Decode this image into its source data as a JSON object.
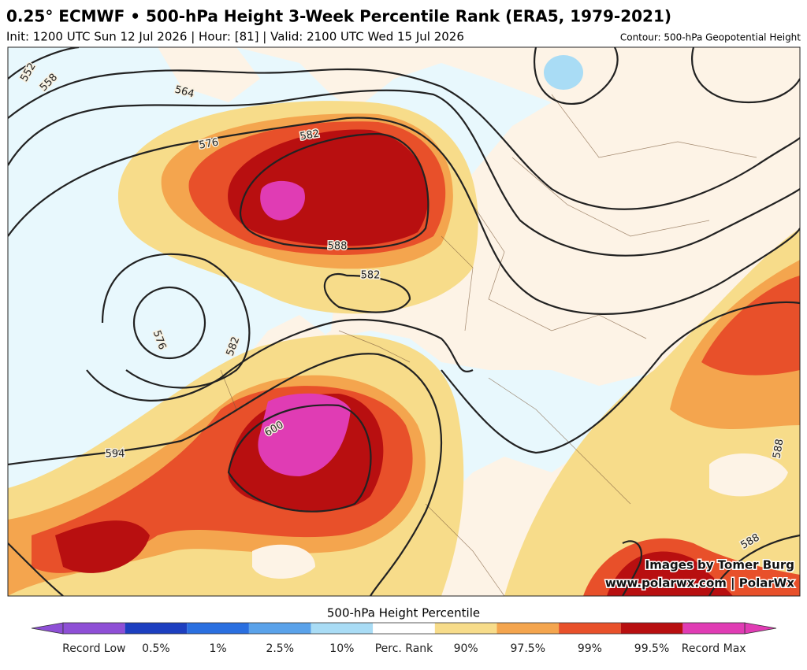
{
  "header": {
    "title": "0.25° ECMWF • 500-hPa Height 3-Week Percentile Rank (ERA5, 1979-2021)",
    "subtitle": "Init: 1200 UTC Sun 12 Jul 2026 | Hour: [81] | Valid: 2100 UTC Wed 15 Jul 2026",
    "contour_note": "Contour: 500-hPa Geopotential Height"
  },
  "map": {
    "contour_labels": [
      "552",
      "558",
      "564",
      "576",
      "582",
      "588",
      "582",
      "576",
      "582",
      "600",
      "594",
      "588",
      "588"
    ],
    "credit": [
      "Images by Tomer Burg",
      "www.polarwx.com | PolarWx"
    ]
  },
  "colorbar": {
    "title": "500-hPa Height Percentile",
    "colors": [
      "#8e4fd6",
      "#1d3fc0",
      "#2a6fe0",
      "#5aa2ea",
      "#a9dcf5",
      "#ffffff",
      "#f7dc8a",
      "#f4a54e",
      "#e8502a",
      "#b80f10",
      "#e03cb4"
    ],
    "labels": [
      "Record Low",
      "0.5%",
      "1%",
      "2.5%",
      "10%",
      "Perc. Rank",
      "90%",
      "97.5%",
      "99%",
      "99.5%",
      "Record Max"
    ]
  }
}
